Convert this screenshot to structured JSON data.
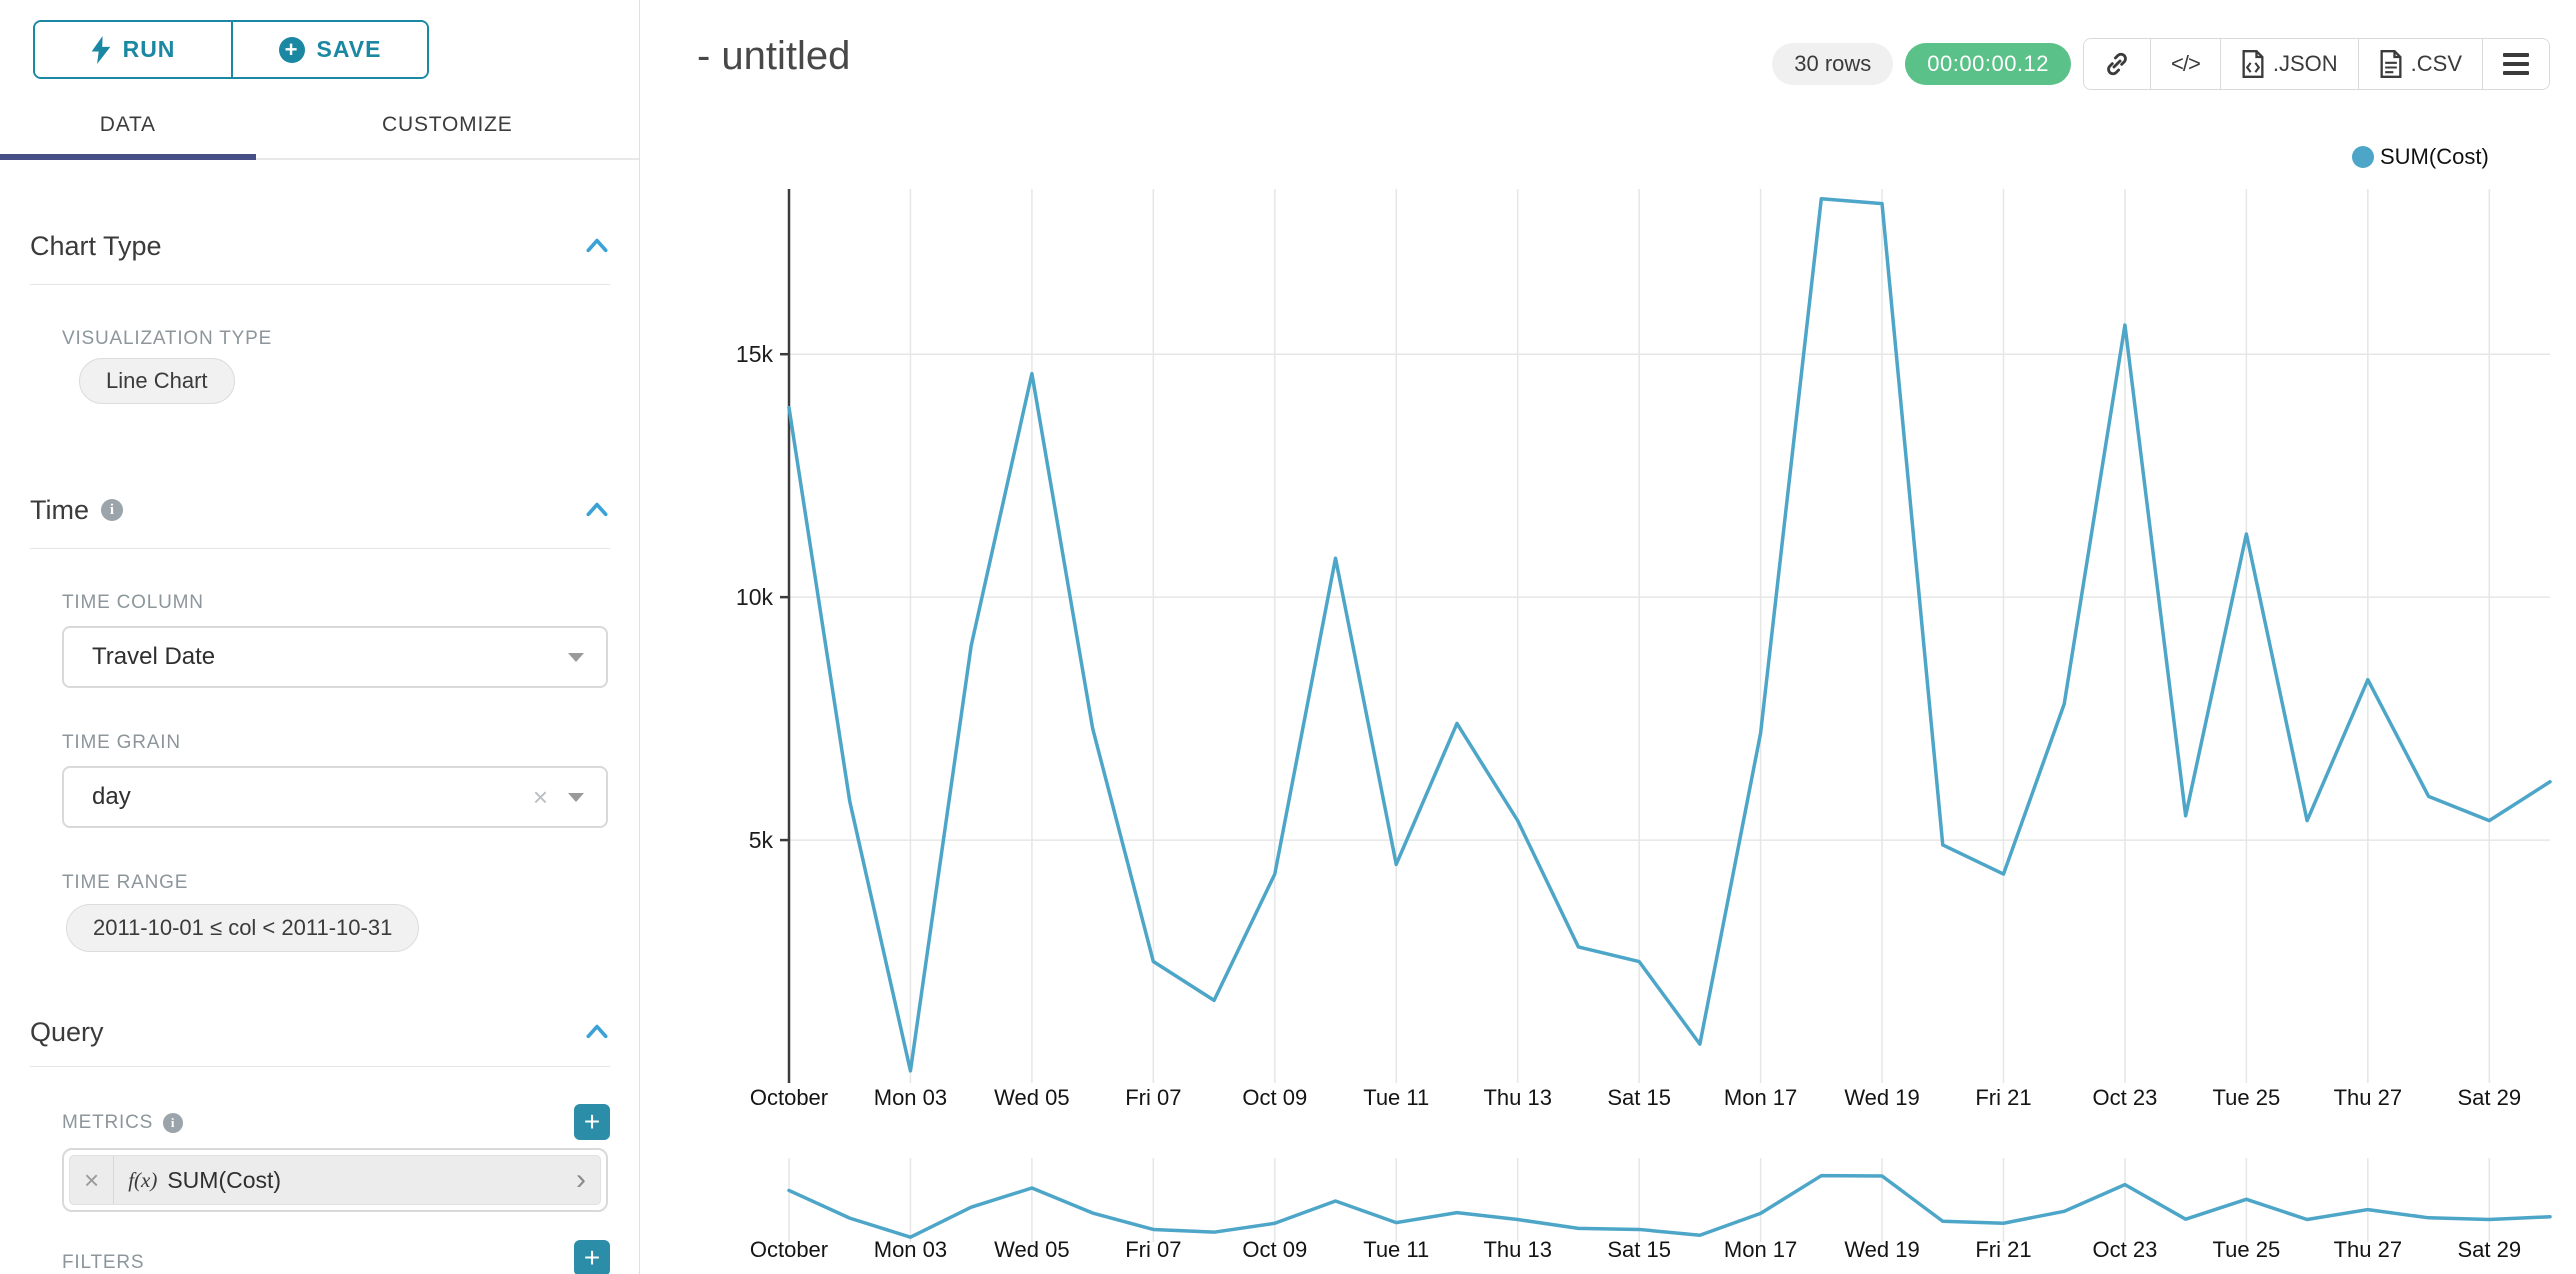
{
  "sidebar": {
    "run_button": "RUN",
    "save_button": "SAVE",
    "tabs": {
      "data": "DATA",
      "customize": "CUSTOMIZE"
    },
    "chart_type_section": {
      "title": "Chart Type",
      "viz_type_label": "VISUALIZATION TYPE",
      "viz_type_value": "Line Chart"
    },
    "time_section": {
      "title": "Time",
      "time_column_label": "TIME COLUMN",
      "time_column_value": "Travel Date",
      "time_grain_label": "TIME GRAIN",
      "time_grain_value": "day",
      "time_range_label": "TIME RANGE",
      "time_range_value": "2011-10-01 ≤ col < 2011-10-31"
    },
    "query_section": {
      "title": "Query",
      "metrics_label": "METRICS",
      "metric_fx": "f(x)",
      "metric_value": "SUM(Cost)",
      "filters_label": "FILTERS"
    }
  },
  "header": {
    "title": "- untitled",
    "row_count_badge": "30 rows",
    "timer_badge": "00:00:00.12",
    "code_button": "</>",
    "json_button": ".JSON",
    "csv_button": ".CSV"
  },
  "legend": {
    "series": "SUM(Cost)"
  },
  "colors": {
    "accent_teal": "#1a87a3",
    "tab_indicator": "#474f87",
    "chevron_blue": "#3ba2d8",
    "success_green": "#5ac189",
    "line": "#4da6c8",
    "grid": "#e6e6e6",
    "axis": "#3c3c3c"
  },
  "chart_data": {
    "type": "line",
    "title": "",
    "series": [
      {
        "name": "SUM(Cost)",
        "values": [
          13900,
          5800,
          250,
          9000,
          14600,
          7300,
          2500,
          1700,
          4300,
          10800,
          4500,
          7400,
          5400,
          2800,
          2500,
          800,
          7200,
          18200,
          18100,
          4900,
          4300,
          7800,
          15600,
          5500,
          11300,
          5400,
          8300,
          5900,
          5400,
          6200
        ]
      }
    ],
    "dates": [
      "2011-10-01",
      "2011-10-02",
      "2011-10-03",
      "2011-10-04",
      "2011-10-05",
      "2011-10-06",
      "2011-10-07",
      "2011-10-08",
      "2011-10-09",
      "2011-10-10",
      "2011-10-11",
      "2011-10-12",
      "2011-10-13",
      "2011-10-14",
      "2011-10-15",
      "2011-10-16",
      "2011-10-17",
      "2011-10-18",
      "2011-10-19",
      "2011-10-20",
      "2011-10-21",
      "2011-10-22",
      "2011-10-23",
      "2011-10-24",
      "2011-10-25",
      "2011-10-26",
      "2011-10-27",
      "2011-10-28",
      "2011-10-29",
      "2011-10-30"
    ],
    "x_ticks": [
      {
        "index": 0,
        "label": "October"
      },
      {
        "index": 2,
        "label": "Mon 03"
      },
      {
        "index": 4,
        "label": "Wed 05"
      },
      {
        "index": 6,
        "label": "Fri 07"
      },
      {
        "index": 8,
        "label": "Oct 09"
      },
      {
        "index": 10,
        "label": "Tue 11"
      },
      {
        "index": 12,
        "label": "Thu 13"
      },
      {
        "index": 14,
        "label": "Sat 15"
      },
      {
        "index": 16,
        "label": "Mon 17"
      },
      {
        "index": 18,
        "label": "Wed 19"
      },
      {
        "index": 20,
        "label": "Fri 21"
      },
      {
        "index": 22,
        "label": "Oct 23"
      },
      {
        "index": 24,
        "label": "Tue 25"
      },
      {
        "index": 26,
        "label": "Thu 27"
      },
      {
        "index": 28,
        "label": "Sat 29"
      }
    ],
    "y_ticks": [
      {
        "value": 5000,
        "label": "5k"
      },
      {
        "value": 10000,
        "label": "10k"
      },
      {
        "value": 15000,
        "label": "15k"
      }
    ],
    "ylim": [
      0,
      18400
    ],
    "grid": true,
    "legend_position": "top-right",
    "has_context_brush": true,
    "xlabel": "",
    "ylabel": ""
  }
}
